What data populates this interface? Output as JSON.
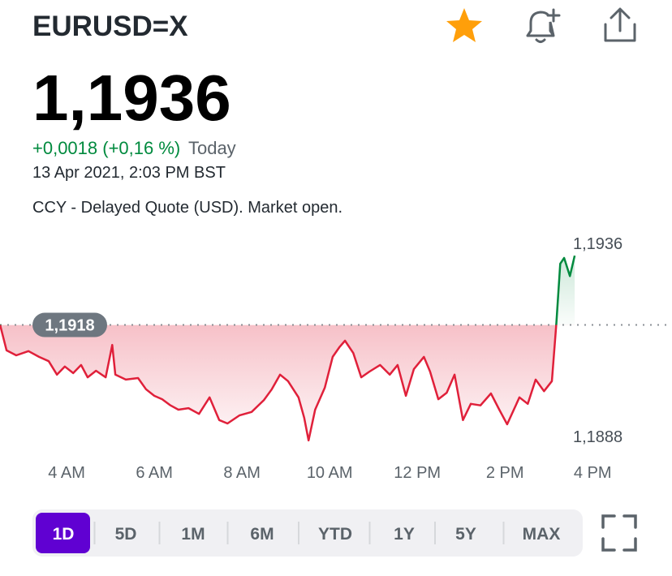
{
  "header": {
    "symbol": "EURUSD=X",
    "price": "1,1936",
    "change": "+0,0018 (+0,16 %)",
    "change_suffix": "Today",
    "timestamp": "13 Apr 2021, 2:03 PM BST",
    "quote_note": "CCY - Delayed Quote (USD). Market open."
  },
  "chart_data": {
    "type": "line",
    "x": [
      2.48,
      2.63,
      2.85,
      3.13,
      3.37,
      3.59,
      3.78,
      3.96,
      4.15,
      4.33,
      4.48,
      4.67,
      4.89,
      5.04,
      5.11,
      5.35,
      5.63,
      5.81,
      6.0,
      6.18,
      6.37,
      6.55,
      6.78,
      7.02,
      7.26,
      7.48,
      7.67,
      7.94,
      8.22,
      8.5,
      8.68,
      8.87,
      9.05,
      9.29,
      9.42,
      9.52,
      9.67,
      9.89,
      10.07,
      10.22,
      10.35,
      10.54,
      10.72,
      10.91,
      11.15,
      11.37,
      11.55,
      11.74,
      11.92,
      12.15,
      12.29,
      12.48,
      12.67,
      12.85,
      13.04,
      13.22,
      13.44,
      13.68,
      13.87,
      14.05,
      14.33,
      14.52,
      14.7,
      14.89,
      15.07,
      15.17,
      15.26,
      15.35,
      15.48,
      15.59
    ],
    "values": [
      1.19181,
      1.19114,
      1.19101,
      1.19112,
      1.19097,
      1.19086,
      1.19051,
      1.19072,
      1.19055,
      1.19076,
      1.19044,
      1.19061,
      1.19044,
      1.19128,
      1.19051,
      1.19038,
      1.19042,
      1.19013,
      1.18996,
      1.18987,
      1.18971,
      1.1896,
      1.18964,
      1.18949,
      1.18992,
      1.18933,
      1.18924,
      1.18945,
      1.18954,
      1.18985,
      1.19013,
      1.19051,
      1.19034,
      1.18992,
      1.18939,
      1.1888,
      1.1896,
      1.19017,
      1.19097,
      1.19122,
      1.19139,
      1.19107,
      1.19044,
      1.19059,
      1.19076,
      1.19051,
      1.19076,
      1.18996,
      1.19065,
      1.19097,
      1.19059,
      1.18987,
      1.19004,
      1.19051,
      1.18933,
      1.18975,
      1.18971,
      1.19002,
      1.1896,
      1.18922,
      1.18992,
      1.18975,
      1.19038,
      1.19008,
      1.19034,
      1.19181,
      1.19339,
      1.19354,
      1.19307,
      1.1936
    ],
    "xlim": [
      2.48,
      17.81
    ],
    "ylim": [
      1.18844,
      1.19413
    ],
    "xticks": [
      {
        "value": 4,
        "label": "4 AM"
      },
      {
        "value": 6,
        "label": "6 AM"
      },
      {
        "value": 8,
        "label": "8 AM"
      },
      {
        "value": 10,
        "label": "10 AM"
      },
      {
        "value": 12,
        "label": "12 PM"
      },
      {
        "value": 14,
        "label": "2 PM"
      },
      {
        "value": 16,
        "label": "4 PM"
      }
    ],
    "previous_close": {
      "value": 1.1918,
      "label": "1,1918"
    },
    "high": {
      "value": 1.1936,
      "label": "1,1936"
    },
    "low": {
      "value": 1.1888,
      "label": "1,1888"
    },
    "up_color": "#008a3e",
    "down_color": "#e0203a"
  },
  "ranges": [
    "1D",
    "5D",
    "1M",
    "6M",
    "YTD",
    "1Y",
    "5Y",
    "MAX"
  ]
}
